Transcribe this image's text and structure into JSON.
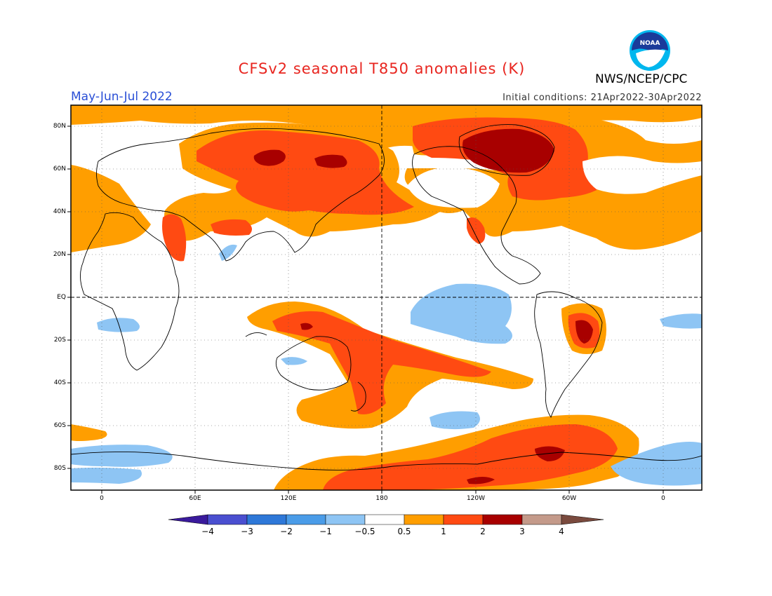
{
  "header": {
    "title": "CFSv2 seasonal T850 anomalies (K)",
    "season": "May-Jun-Jul 2022",
    "initial_conditions": "Initial conditions: 21Apr2022-30Apr2022",
    "agency": "NWS/NCEP/CPC",
    "logo_text": "NOAA",
    "logo_icon": "noaa-logo-icon"
  },
  "map": {
    "projection": "cylindrical-equidistant",
    "lon_range": [
      -15,
      345
    ],
    "lat_range": [
      -90,
      90
    ],
    "lat_labels": [
      "80N",
      "60N",
      "40N",
      "20N",
      "EQ",
      "20S",
      "40S",
      "60S",
      "80S"
    ],
    "lon_labels": [
      "0",
      "60E",
      "120E",
      "180",
      "120W",
      "60W",
      "0"
    ],
    "grid": "dotted",
    "colors": {
      "neg_4": "#3a1a9c",
      "neg_3": "#4a4fd0",
      "neg_2": "#2e78d8",
      "neg_1": "#4a9ce8",
      "neg_05": "#8ec5f4",
      "neutral": "#ffffff",
      "pos_05": "#ff9e00",
      "pos_1": "#ff4a12",
      "pos_2": "#a80000",
      "pos_3": "#c49a8a",
      "pos_4": "#7a4a3e"
    }
  },
  "colorbar": {
    "labels": [
      "−4",
      "−3",
      "−2",
      "−1",
      "−0.5",
      "0.5",
      "1",
      "2",
      "3",
      "4"
    ]
  }
}
